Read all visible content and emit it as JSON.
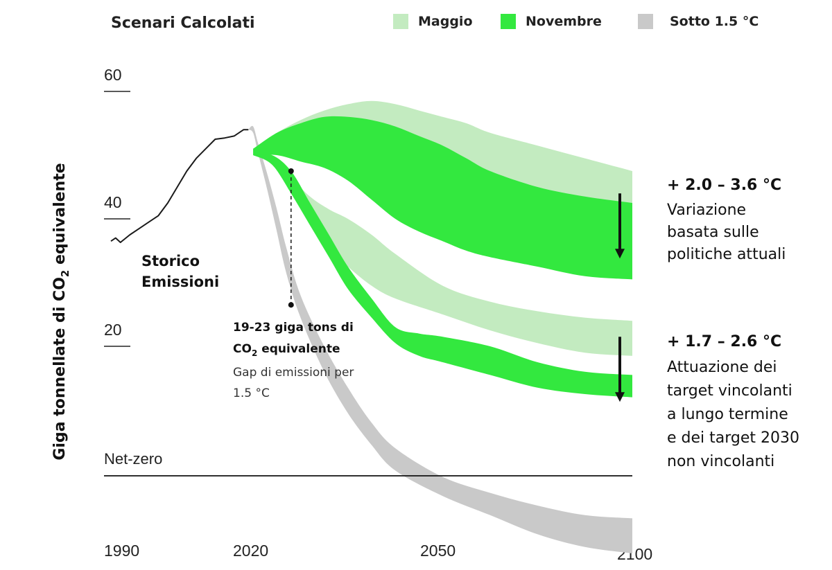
{
  "header": {
    "title": "Scenari Calcolati",
    "legend": [
      {
        "label": "Maggio",
        "color": "#c3ebc0"
      },
      {
        "label": "Novembre",
        "color": "#33e83f"
      },
      {
        "label": "Sotto 1.5 °C",
        "color": "#c9c9c9"
      }
    ]
  },
  "chart_data": {
    "type": "area",
    "ylabel_main": "Giga tonnellate di CO",
    "ylabel_sub": "2",
    "ylabel_tail": " equivalente",
    "x_ticks": [
      "1990",
      "2020",
      "2050",
      "2100"
    ],
    "y_ticks": [
      "60",
      "40",
      "20"
    ],
    "y_tick_values": [
      60,
      40,
      20
    ],
    "net_zero_label": "Net-zero",
    "grid": false,
    "xlim": [
      1990,
      2100
    ],
    "ylim": [
      -10,
      65
    ],
    "history": {
      "label_line1": "Storico",
      "label_line2": "Emissioni",
      "x": [
        1990,
        1991,
        1992,
        1994,
        1996,
        1998,
        2000,
        2002,
        2004,
        2006,
        2008,
        2010,
        2012,
        2014,
        2016,
        2018,
        2019
      ],
      "y": [
        36.5,
        37,
        36.3,
        37.5,
        38.5,
        39.5,
        40.5,
        42.5,
        45,
        47.5,
        49.5,
        51,
        52.5,
        52.7,
        53,
        54,
        54
      ]
    },
    "series": [
      {
        "name": "Maggio",
        "color": "#c3ebc0",
        "bands": [
          {
            "x": [
              2020,
              2025,
              2030,
              2035,
              2040,
              2045,
              2050,
              2055,
              2060,
              2065,
              2070,
              2080,
              2090,
              2100
            ],
            "upper": [
              51,
              53.5,
              55.5,
              57,
              58,
              58.5,
              58,
              57,
              56,
              55,
              53.5,
              51.5,
              49.5,
              47.5
            ],
            "lower": [
              50,
              51.5,
              51.5,
              51,
              50,
              49,
              47.5,
              46.5,
              45.5,
              44.5,
              43.5,
              42,
              40,
              38.5
            ]
          },
          {
            "x": [
              2020,
              2024,
              2028,
              2032,
              2036,
              2040,
              2045,
              2050,
              2060,
              2070,
              2080,
              2090,
              2100
            ],
            "upper": [
              50,
              49.5,
              46.5,
              43.5,
              41.5,
              40,
              37.5,
              34.5,
              29.5,
              27,
              25.5,
              24.5,
              24
            ],
            "lower": [
              50,
              48.5,
              44.5,
              39.5,
              35.5,
              32.5,
              29.5,
              27.5,
              25,
              22.5,
              20.5,
              19,
              18.5
            ]
          }
        ]
      },
      {
        "name": "Novembre",
        "color": "#33e83f",
        "bands": [
          {
            "x": [
              2020,
              2025,
              2030,
              2035,
              2040,
              2045,
              2050,
              2055,
              2060,
              2065,
              2070,
              2080,
              2090,
              2100
            ],
            "upper": [
              51,
              53.5,
              55,
              56,
              56,
              55.5,
              54.5,
              53,
              51.5,
              49.5,
              47.5,
              45,
              43.5,
              42.5
            ],
            "lower": [
              50,
              50,
              49,
              48,
              46,
              43,
              40,
              38,
              36.5,
              35,
              34,
              32.5,
              31,
              30.5
            ]
          },
          {
            "x": [
              2020,
              2024,
              2028,
              2032,
              2036,
              2040,
              2045,
              2050,
              2055,
              2060,
              2070,
              2080,
              2090,
              2100
            ],
            "upper": [
              50,
              50,
              47.5,
              42.5,
              37.5,
              32.5,
              27.5,
              23,
              22,
              21.5,
              20,
              17.5,
              16,
              15.5
            ],
            "lower": [
              50,
              48.5,
              44,
              39,
              34,
              29,
              24.5,
              20.5,
              18.5,
              17.5,
              15.5,
              13.5,
              12.5,
              12
            ]
          }
        ]
      },
      {
        "name": "Sotto 1.5 °C",
        "color": "#c9c9c9",
        "bands": [
          {
            "x": [
              2019,
              2020,
              2021,
              2023,
              2025,
              2027,
              2030,
              2035,
              2040,
              2045,
              2050,
              2060,
              2070,
              2080,
              2090,
              2100
            ],
            "upper": [
              54,
              54.5,
              52,
              47,
              41.5,
              35.5,
              28,
              20,
              13.5,
              8,
              4,
              -0.5,
              -3,
              -5,
              -6.5,
              -7
            ],
            "lower": [
              54,
              53.5,
              50.5,
              44.5,
              38,
              31.5,
              24.5,
              16,
              9.5,
              4.5,
              0.5,
              -3.5,
              -6.5,
              -9.5,
              -11.5,
              -12.5
            ]
          }
        ]
      }
    ],
    "gap": {
      "x": 2028,
      "y_top": 47.5,
      "y_bottom": 26.5,
      "line1": "19-23 giga tons di",
      "line2_main": "CO",
      "line2_sub": "2",
      "line2_tail": " equivalente",
      "line3": "Gap di emissioni per",
      "line4": "1.5 °C"
    },
    "annotations": [
      {
        "temp": "+ 2.0 – 3.6 °C",
        "lines": [
          "Variazione",
          "basata sulle",
          "politiche attuali"
        ],
        "arrow_from": 44,
        "arrow_to": 34
      },
      {
        "temp": "+ 1.7 – 2.6 °C",
        "lines": [
          "Attuazione dei",
          "target vincolanti",
          "a lungo termine",
          "e dei target 2030",
          "non vincolanti"
        ],
        "arrow_from": 21.5,
        "arrow_to": 11.5
      }
    ]
  }
}
